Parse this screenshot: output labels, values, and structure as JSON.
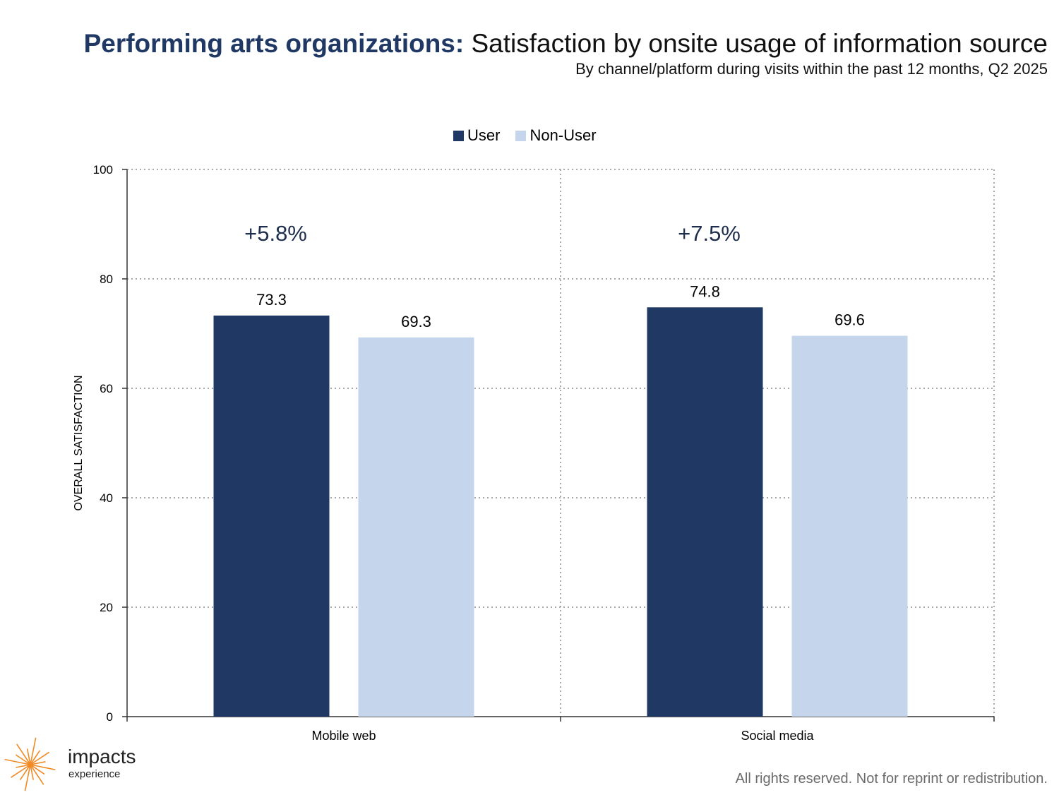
{
  "header": {
    "title_bold": "Performing arts organizations:",
    "title_rest": " Satisfaction by onsite usage of information source",
    "subtitle": "By channel/platform during visits within the past 12 months, Q2 2025"
  },
  "footer": {
    "notice": "All rights reserved. Not for reprint or redistribution."
  },
  "logo": {
    "name": "impacts",
    "sub": "experience"
  },
  "colors": {
    "user": "#203864",
    "non_user": "#c5d5ec",
    "accent": "#f08a24",
    "title": "#203864"
  },
  "chart_data": {
    "type": "bar",
    "title": "Performing arts organizations: Satisfaction by onsite usage of information source",
    "subtitle": "By channel/platform during visits within the past 12 months, Q2 2025",
    "categories": [
      "Mobile web",
      "Social media"
    ],
    "series": [
      {
        "name": "User",
        "values": [
          73.3,
          74.8
        ],
        "labels": [
          "73.3",
          "74.8"
        ]
      },
      {
        "name": "Non-User",
        "values": [
          69.3,
          69.6
        ],
        "labels": [
          "69.3",
          "69.6"
        ]
      }
    ],
    "annotations": [
      "+5.8%",
      "+7.5%"
    ],
    "xlabel": "",
    "ylabel": "OVERALL SATISFACTION",
    "ylim": [
      0,
      100
    ],
    "yticks": [
      0,
      20,
      40,
      60,
      80,
      100
    ],
    "ytick_labels": [
      "0",
      "20",
      "40",
      "60",
      "80",
      "100"
    ],
    "grid": true,
    "legend_position": "top-center"
  }
}
